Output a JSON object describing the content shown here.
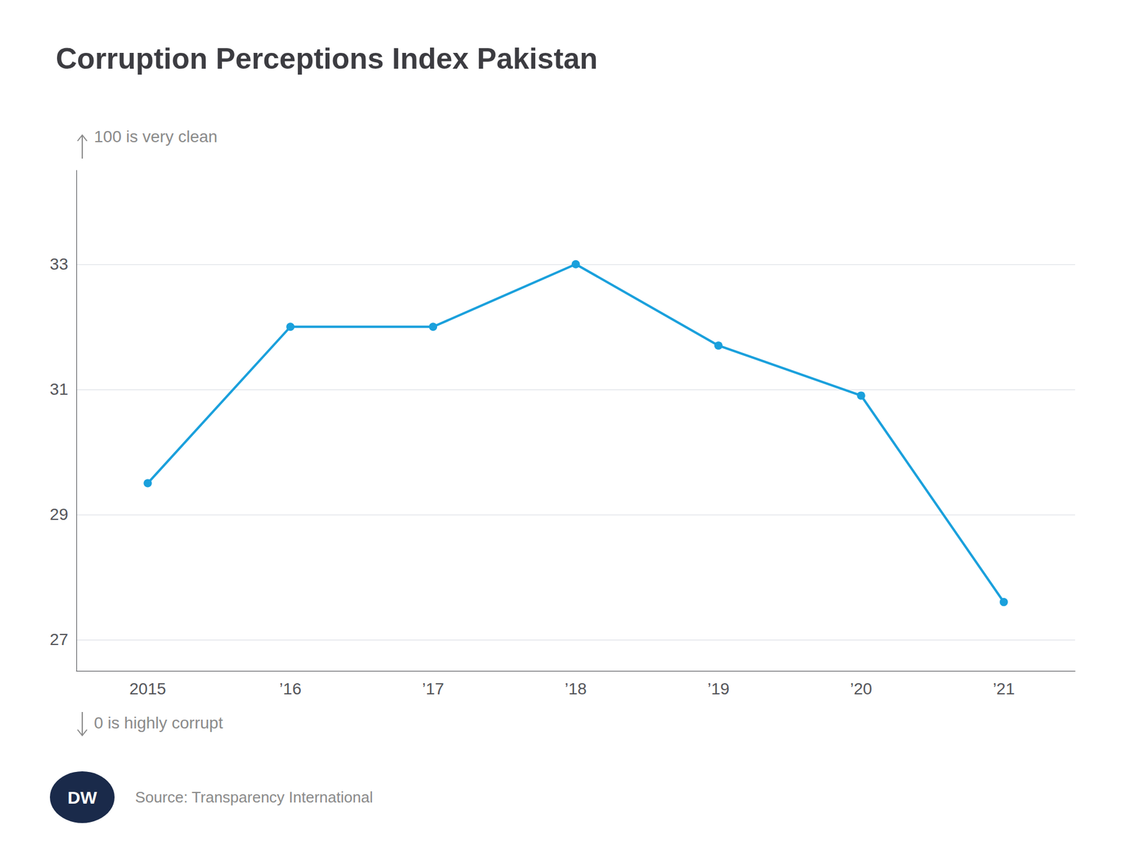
{
  "chart_data": {
    "type": "line",
    "title": "Corruption Perceptions Index Pakistan",
    "categories": [
      "2015",
      "’16",
      "’17",
      "’18",
      "’19",
      "’20",
      "’21"
    ],
    "values": [
      29.5,
      32.0,
      32.0,
      33.0,
      31.7,
      30.9,
      27.6
    ],
    "color": "#1aa0dc",
    "marker": "circle",
    "ylim": [
      26.5,
      34.5
    ],
    "yticks": [
      27,
      29,
      31,
      33
    ],
    "grid": true,
    "annotations": [
      "100 is very clean",
      "0 is highly corrupt",
      "Source: Transparency International",
      "DW"
    ]
  }
}
